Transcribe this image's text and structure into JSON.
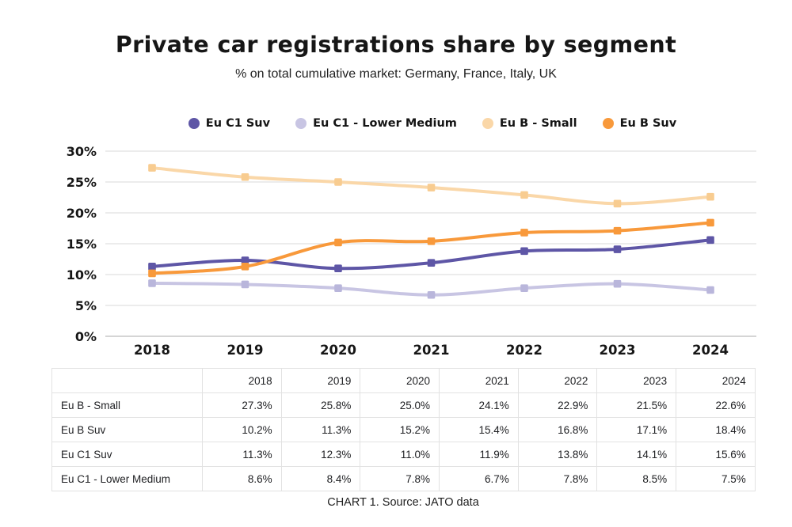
{
  "page": {
    "title": "Private car registrations share by segment",
    "subtitle": "% on total cumulative market: Germany, France, Italy, UK",
    "caption": "CHART 1. Source: JATO data"
  },
  "chart_data": {
    "type": "line",
    "title": "Private car registrations share by segment",
    "subtitle": "% on total cumulative market: Germany, France, Italy, UK",
    "x": [
      "2018",
      "2019",
      "2020",
      "2021",
      "2022",
      "2023",
      "2024"
    ],
    "series": [
      {
        "name": "Eu C1 Suv",
        "values": [
          11.3,
          12.3,
          11.0,
          11.9,
          13.8,
          14.1,
          15.6
        ],
        "color": "#5E56A6",
        "marker_color": "#5E56A6"
      },
      {
        "name": "Eu C1 - Lower Medium",
        "values": [
          8.6,
          8.4,
          7.8,
          6.7,
          7.8,
          8.5,
          7.5
        ],
        "color": "#C8C5E3",
        "marker_color": "#B9B6DB"
      },
      {
        "name": "Eu B - Small",
        "values": [
          27.3,
          25.8,
          25.0,
          24.1,
          22.9,
          21.5,
          22.6
        ],
        "color": "#FAD7A8",
        "marker_color": "#F8CC90"
      },
      {
        "name": "Eu B Suv",
        "values": [
          10.2,
          11.3,
          15.2,
          15.4,
          16.8,
          17.1,
          18.4
        ],
        "color": "#F8993B",
        "marker_color": "#F8993B"
      }
    ],
    "draw_order": [
      2,
      1,
      0,
      3
    ],
    "yticks": [
      0,
      5,
      10,
      15,
      20,
      25,
      30
    ],
    "ytick_suffix": "%",
    "ylim": [
      0,
      30
    ],
    "grid": true,
    "legend_position": "top",
    "grid_color": "#e6e6e6",
    "baseline_color": "#c7c7c7",
    "label_color": "#161616"
  },
  "table": {
    "header": [
      "",
      "2018",
      "2019",
      "2020",
      "2021",
      "2022",
      "2023",
      "2024"
    ],
    "rows": [
      {
        "label": "Eu B - Small",
        "values": [
          "27.3%",
          "25.8%",
          "25.0%",
          "24.1%",
          "22.9%",
          "21.5%",
          "22.6%"
        ]
      },
      {
        "label": "Eu B Suv",
        "values": [
          "10.2%",
          "11.3%",
          "15.2%",
          "15.4%",
          "16.8%",
          "17.1%",
          "18.4%"
        ]
      },
      {
        "label": "Eu C1 Suv",
        "values": [
          "11.3%",
          "12.3%",
          "11.0%",
          "11.9%",
          "13.8%",
          "14.1%",
          "15.6%"
        ]
      },
      {
        "label": "Eu C1 - Lower Medium",
        "values": [
          "8.6%",
          "8.4%",
          "7.8%",
          "6.7%",
          "7.8%",
          "8.5%",
          "7.5%"
        ]
      }
    ]
  }
}
